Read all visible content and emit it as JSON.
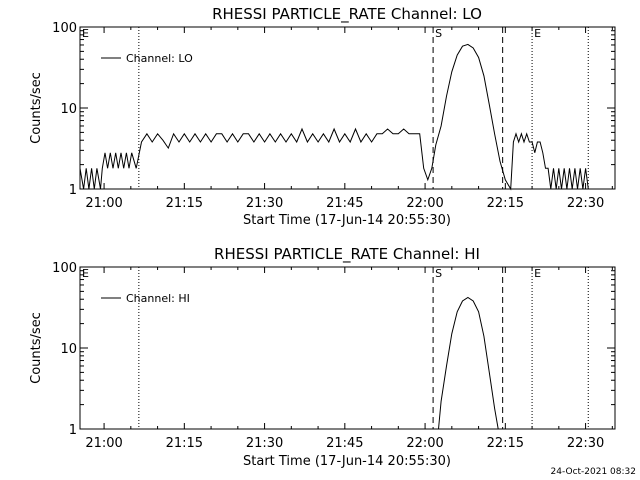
{
  "footer": {
    "timestamp": "24-Oct-2021 08:32"
  },
  "chart_data": [
    {
      "type": "line",
      "title": "RHESSI PARTICLE_RATE Channel: LO",
      "xlabel": "Start Time (17-Jun-14 20:55:30)",
      "ylabel": "Counts/sec",
      "xlim": [
        "20:55:30",
        "22:35:30"
      ],
      "ylim": [
        1,
        100
      ],
      "yscale": "log",
      "xticks": [
        "21:00",
        "21:15",
        "21:30",
        "21:45",
        "22:00",
        "22:15",
        "22:30"
      ],
      "yticks": [
        "1",
        "10",
        "100"
      ],
      "legend": {
        "position": "top-left",
        "entries": [
          "Channel: LO"
        ]
      },
      "markers": [
        {
          "label": "E",
          "time": "20:55:30",
          "style": "none"
        },
        {
          "label": "",
          "time": "21:06:30",
          "style": "dotted"
        },
        {
          "label": "S",
          "time": "22:01:30",
          "style": "dashed"
        },
        {
          "label": "",
          "time": "22:14:30",
          "style": "dashed"
        },
        {
          "label": "E",
          "time": "22:20:00",
          "style": "dotted"
        },
        {
          "label": "",
          "time": "22:30:30",
          "style": "dotted"
        }
      ],
      "series": [
        {
          "name": "Channel: LO",
          "points": [
            [
              "20:55:30",
              1.8
            ],
            [
              "20:56:10",
              1
            ],
            [
              "20:56:40",
              1.8
            ],
            [
              "20:57:10",
              1
            ],
            [
              "20:57:40",
              1.8
            ],
            [
              "20:58:10",
              1
            ],
            [
              "20:58:40",
              1.8
            ],
            [
              "20:59:20",
              1
            ],
            [
              "20:59:40",
              1.8
            ],
            [
              "21:00:10",
              2.8
            ],
            [
              "21:00:40",
              1.8
            ],
            [
              "21:01:10",
              2.8
            ],
            [
              "21:01:40",
              1.8
            ],
            [
              "21:02:10",
              2.8
            ],
            [
              "21:02:40",
              1.8
            ],
            [
              "21:03:10",
              2.8
            ],
            [
              "21:03:40",
              1.8
            ],
            [
              "21:04:10",
              2.8
            ],
            [
              "21:04:40",
              1.8
            ],
            [
              "21:05:10",
              2.8
            ],
            [
              "21:06:00",
              1.8
            ],
            [
              "21:07:00",
              3.8
            ],
            [
              "21:08:00",
              4.8
            ],
            [
              "21:09:00",
              3.8
            ],
            [
              "21:10:00",
              4.8
            ],
            [
              "21:11:00",
              4.0
            ],
            [
              "21:12:00",
              3.2
            ],
            [
              "21:13:00",
              4.8
            ],
            [
              "21:14:00",
              3.8
            ],
            [
              "21:15:00",
              4.8
            ],
            [
              "21:16:00",
              3.8
            ],
            [
              "21:17:00",
              4.8
            ],
            [
              "21:18:00",
              3.8
            ],
            [
              "21:19:00",
              4.8
            ],
            [
              "21:20:00",
              3.8
            ],
            [
              "21:21:00",
              4.8
            ],
            [
              "21:22:00",
              4.8
            ],
            [
              "21:23:00",
              3.8
            ],
            [
              "21:24:00",
              4.8
            ],
            [
              "21:25:00",
              3.8
            ],
            [
              "21:26:00",
              4.8
            ],
            [
              "21:27:00",
              4.8
            ],
            [
              "21:28:00",
              3.8
            ],
            [
              "21:29:00",
              4.8
            ],
            [
              "21:30:00",
              3.8
            ],
            [
              "21:31:00",
              4.8
            ],
            [
              "21:32:00",
              3.8
            ],
            [
              "21:33:00",
              4.8
            ],
            [
              "21:34:00",
              3.8
            ],
            [
              "21:35:00",
              4.8
            ],
            [
              "21:36:00",
              3.8
            ],
            [
              "21:37:00",
              5.5
            ],
            [
              "21:38:00",
              3.8
            ],
            [
              "21:39:00",
              4.8
            ],
            [
              "21:40:00",
              3.8
            ],
            [
              "21:41:00",
              4.8
            ],
            [
              "21:42:00",
              3.8
            ],
            [
              "21:43:00",
              5.5
            ],
            [
              "21:44:00",
              3.8
            ],
            [
              "21:45:00",
              4.8
            ],
            [
              "21:46:00",
              3.8
            ],
            [
              "21:47:00",
              5.5
            ],
            [
              "21:48:00",
              3.8
            ],
            [
              "21:49:00",
              4.8
            ],
            [
              "21:50:00",
              3.8
            ],
            [
              "21:51:00",
              4.8
            ],
            [
              "21:52:00",
              4.8
            ],
            [
              "21:53:00",
              5.5
            ],
            [
              "21:54:00",
              4.8
            ],
            [
              "21:55:00",
              4.8
            ],
            [
              "21:56:00",
              5.5
            ],
            [
              "21:57:00",
              4.8
            ],
            [
              "21:58:00",
              4.8
            ],
            [
              "21:59:00",
              4.8
            ],
            [
              "21:59:45",
              1.8
            ],
            [
              "22:00:30",
              1.3
            ],
            [
              "22:01:15",
              1.8
            ],
            [
              "22:02:00",
              3.5
            ],
            [
              "22:03:00",
              6
            ],
            [
              "22:04:00",
              14
            ],
            [
              "22:05:00",
              28
            ],
            [
              "22:06:00",
              45
            ],
            [
              "22:07:00",
              58
            ],
            [
              "22:08:00",
              61
            ],
            [
              "22:09:00",
              55
            ],
            [
              "22:10:00",
              42
            ],
            [
              "22:11:00",
              25
            ],
            [
              "22:12:00",
              11
            ],
            [
              "22:13:00",
              4.8
            ],
            [
              "22:14:00",
              2.2
            ],
            [
              "22:15:00",
              1.3
            ],
            [
              "22:16:00",
              1
            ],
            [
              "22:16:30",
              3.8
            ],
            [
              "22:17:00",
              4.8
            ],
            [
              "22:17:30",
              3.8
            ],
            [
              "22:18:00",
              4.8
            ],
            [
              "22:18:30",
              3.8
            ],
            [
              "22:19:00",
              4.8
            ],
            [
              "22:19:30",
              3.8
            ],
            [
              "22:20:00",
              3.8
            ],
            [
              "22:20:30",
              2.8
            ],
            [
              "22:21:00",
              3.8
            ],
            [
              "22:21:30",
              3.8
            ],
            [
              "22:22:00",
              2.8
            ],
            [
              "22:22:30",
              1.8
            ],
            [
              "22:23:00",
              1.8
            ],
            [
              "22:23:30",
              1
            ],
            [
              "22:24:00",
              1.8
            ],
            [
              "22:24:30",
              1
            ],
            [
              "22:25:00",
              1.8
            ],
            [
              "22:25:30",
              1
            ],
            [
              "22:26:00",
              1.8
            ],
            [
              "22:26:30",
              1
            ],
            [
              "22:27:00",
              1.8
            ],
            [
              "22:27:30",
              1
            ],
            [
              "22:28:00",
              1.8
            ],
            [
              "22:28:30",
              1
            ],
            [
              "22:29:00",
              1.8
            ],
            [
              "22:29:30",
              1
            ],
            [
              "22:30:00",
              1.8
            ],
            [
              "22:30:30",
              1
            ]
          ]
        }
      ]
    },
    {
      "type": "line",
      "title": "RHESSI PARTICLE_RATE Channel: HI",
      "xlabel": "Start Time (17-Jun-14 20:55:30)",
      "ylabel": "Counts/sec",
      "xlim": [
        "20:55:30",
        "22:35:30"
      ],
      "ylim": [
        1,
        100
      ],
      "yscale": "log",
      "xticks": [
        "21:00",
        "21:15",
        "21:30",
        "21:45",
        "22:00",
        "22:15",
        "22:30"
      ],
      "yticks": [
        "1",
        "10",
        "100"
      ],
      "legend": {
        "position": "top-left",
        "entries": [
          "Channel: HI"
        ]
      },
      "markers": [
        {
          "label": "E",
          "time": "20:55:30",
          "style": "none"
        },
        {
          "label": "",
          "time": "21:06:30",
          "style": "dotted"
        },
        {
          "label": "S",
          "time": "22:01:30",
          "style": "dashed"
        },
        {
          "label": "",
          "time": "22:14:30",
          "style": "dashed"
        },
        {
          "label": "E",
          "time": "22:20:00",
          "style": "dotted"
        },
        {
          "label": "",
          "time": "22:30:30",
          "style": "dotted"
        }
      ],
      "series": [
        {
          "name": "Channel: HI",
          "points": [
            [
              "22:02:30",
              1
            ],
            [
              "22:03:00",
              2.2
            ],
            [
              "22:04:00",
              6
            ],
            [
              "22:05:00",
              15
            ],
            [
              "22:06:00",
              28
            ],
            [
              "22:07:00",
              38
            ],
            [
              "22:08:00",
              42
            ],
            [
              "22:09:00",
              38
            ],
            [
              "22:10:00",
              28
            ],
            [
              "22:11:00",
              14
            ],
            [
              "22:12:00",
              5
            ],
            [
              "22:13:00",
              1.8
            ],
            [
              "22:13:40",
              1
            ]
          ]
        }
      ]
    }
  ]
}
